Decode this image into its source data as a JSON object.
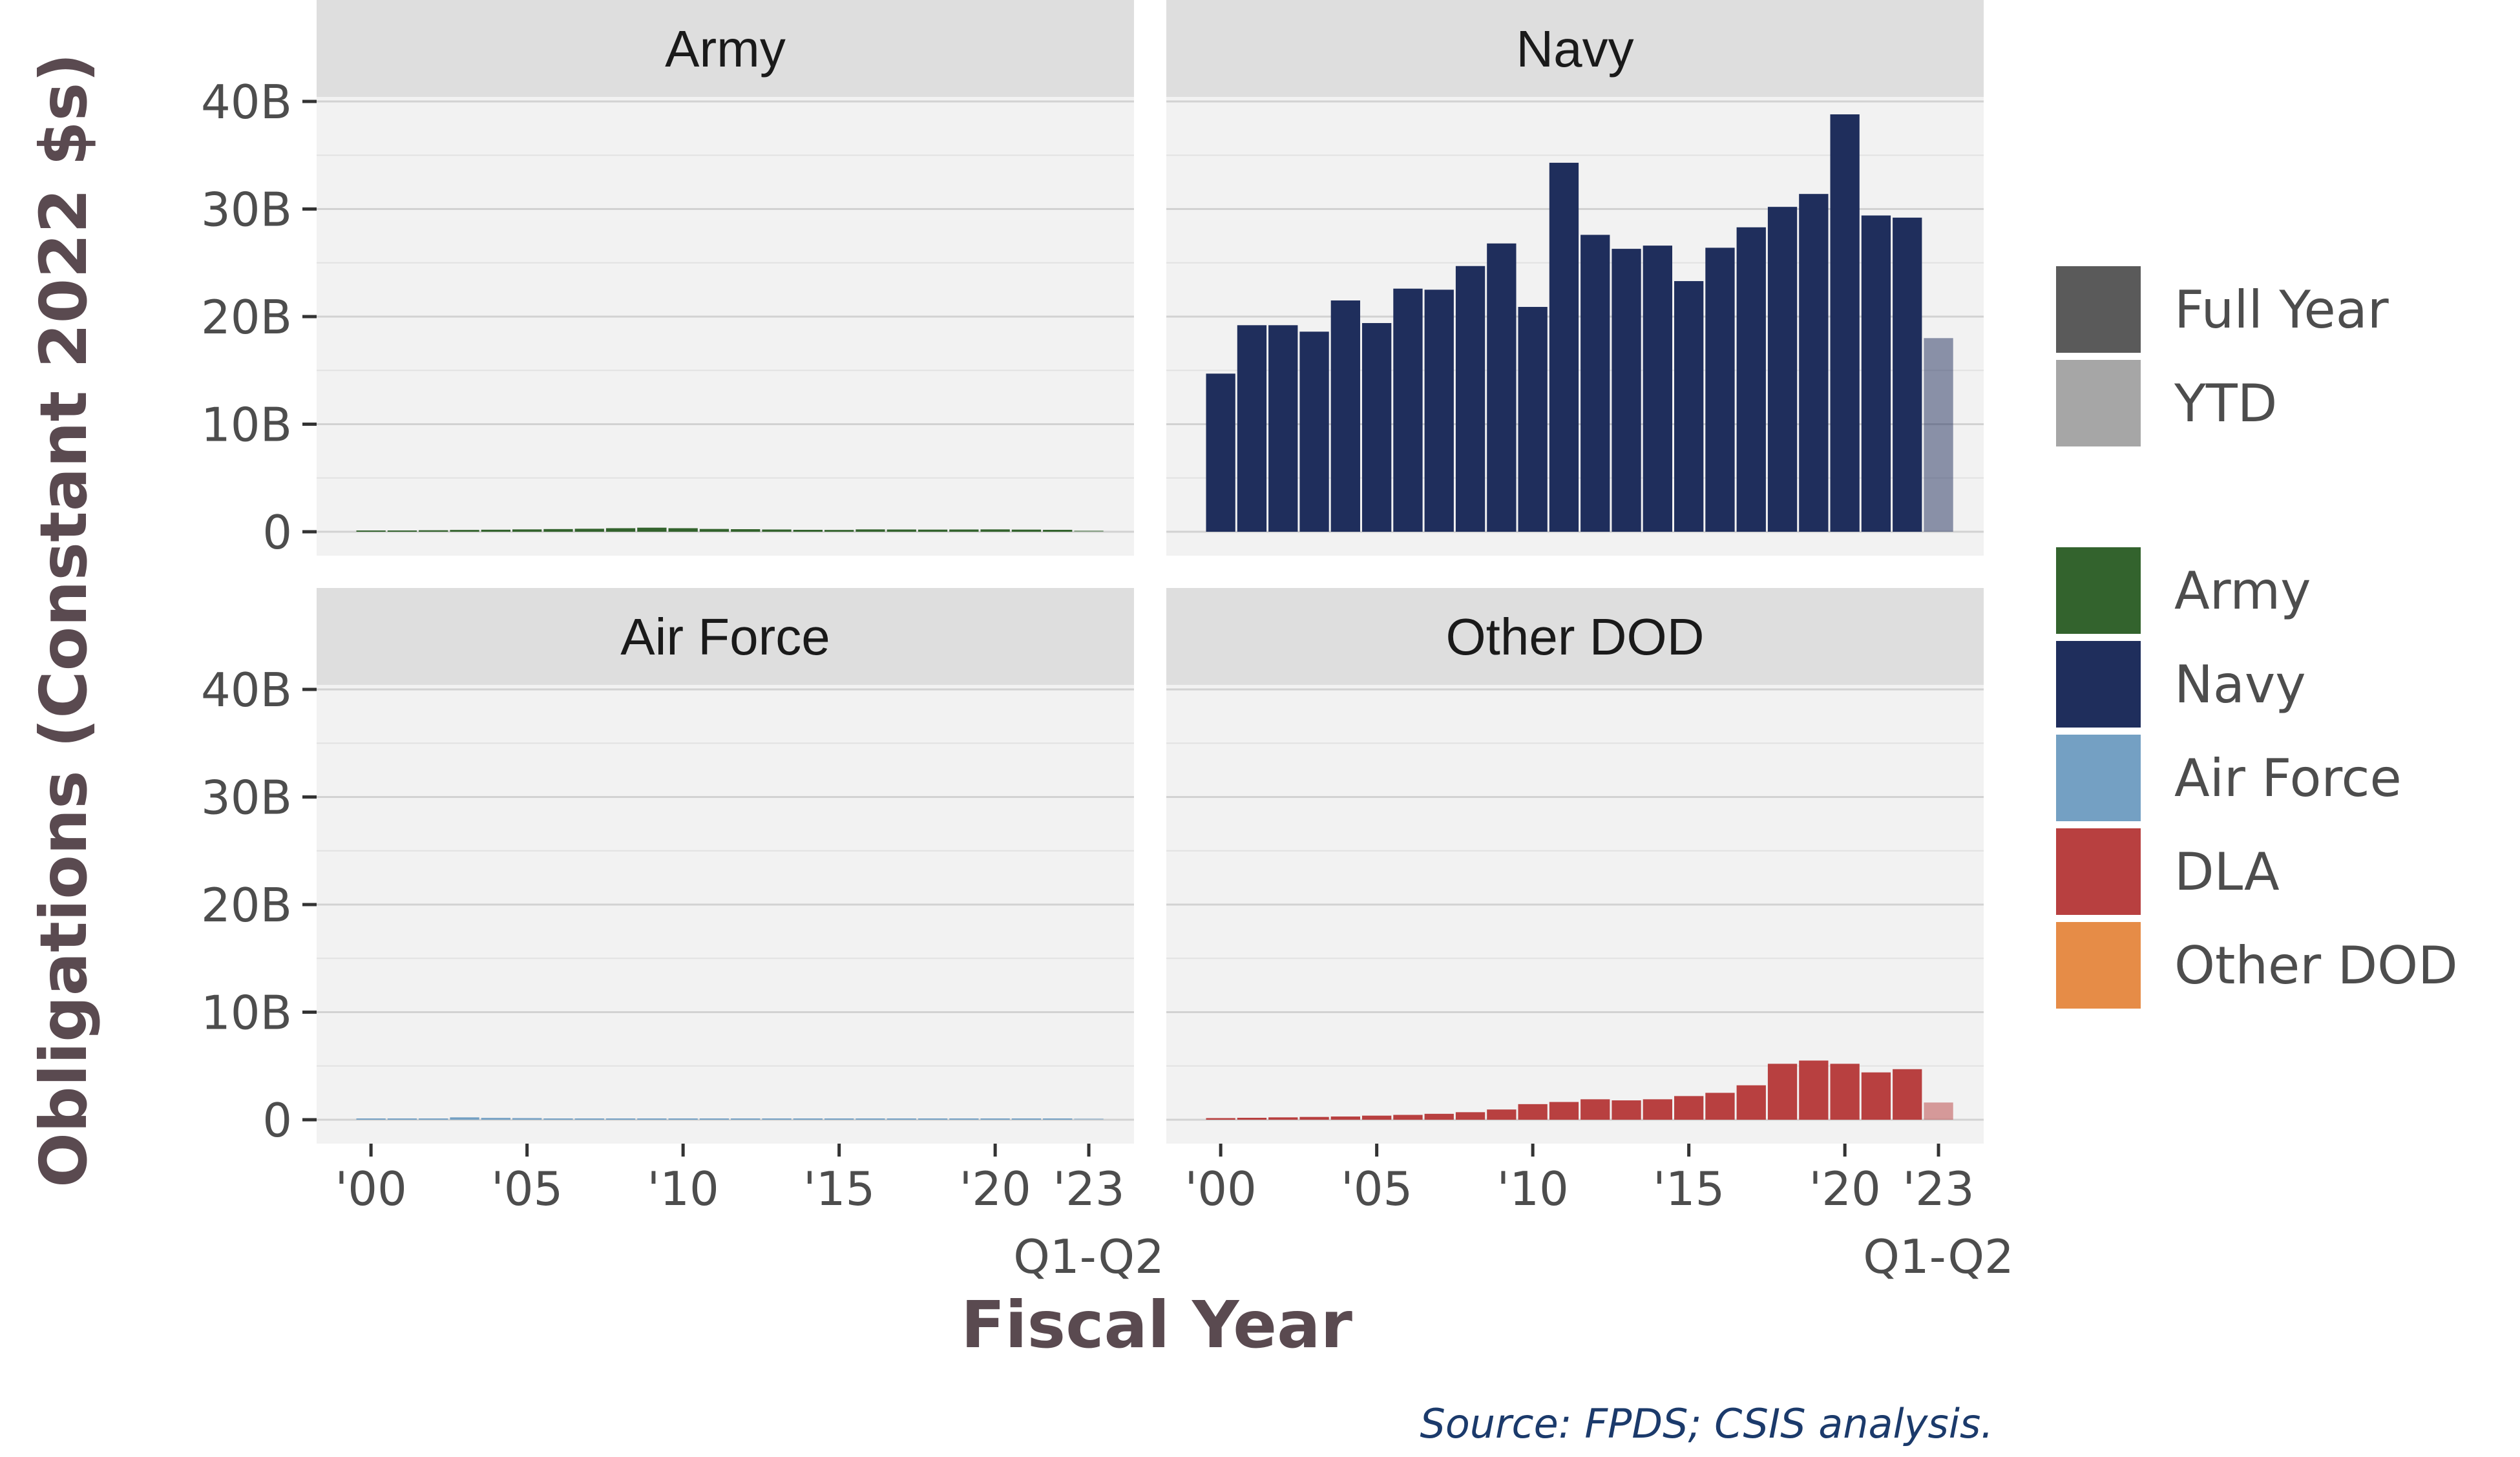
{
  "chart_data": {
    "type": "bar",
    "facets": [
      "Army",
      "Navy",
      "Air Force",
      "Other DOD"
    ],
    "ylabel": "Obligations (Constant 2022 $s)",
    "xlabel": "Fiscal Year",
    "ylim": [
      0,
      40000000000
    ],
    "yticks": [
      {
        "value": 0,
        "label": "0"
      },
      {
        "value": 10000000000,
        "label": "10B"
      },
      {
        "value": 20000000000,
        "label": "20B"
      },
      {
        "value": 30000000000,
        "label": "30B"
      },
      {
        "value": 40000000000,
        "label": "40B"
      }
    ],
    "xticks": [
      {
        "year": 2000,
        "label": "'00"
      },
      {
        "year": 2005,
        "label": "'05"
      },
      {
        "year": 2010,
        "label": "'10"
      },
      {
        "year": 2015,
        "label": "'15"
      },
      {
        "year": 2020,
        "label": "'20"
      },
      {
        "year": 2023,
        "label": "'23",
        "sublabel": "Q1-Q2"
      }
    ],
    "years": [
      2000,
      2001,
      2002,
      2003,
      2004,
      2005,
      2006,
      2007,
      2008,
      2009,
      2010,
      2011,
      2012,
      2013,
      2014,
      2015,
      2016,
      2017,
      2018,
      2019,
      2020,
      2021,
      2022,
      2023
    ],
    "period": [
      "Full Year",
      "Full Year",
      "Full Year",
      "Full Year",
      "Full Year",
      "Full Year",
      "Full Year",
      "Full Year",
      "Full Year",
      "Full Year",
      "Full Year",
      "Full Year",
      "Full Year",
      "Full Year",
      "Full Year",
      "Full Year",
      "Full Year",
      "Full Year",
      "Full Year",
      "Full Year",
      "Full Year",
      "Full Year",
      "Full Year",
      "YTD"
    ],
    "series": [
      {
        "name": "Army",
        "facet": "Army",
        "color": "#33632d",
        "values": [
          0.1,
          0.12,
          0.14,
          0.17,
          0.19,
          0.22,
          0.25,
          0.28,
          0.33,
          0.38,
          0.33,
          0.26,
          0.24,
          0.21,
          0.18,
          0.17,
          0.22,
          0.21,
          0.2,
          0.21,
          0.22,
          0.2,
          0.18,
          0.06
        ]
      },
      {
        "name": "Navy",
        "facet": "Navy",
        "color": "#1f2e5c",
        "values": [
          14.7,
          19.2,
          19.2,
          18.6,
          21.5,
          19.4,
          22.6,
          22.5,
          24.7,
          26.8,
          20.9,
          34.3,
          27.6,
          26.3,
          26.6,
          23.3,
          26.4,
          28.3,
          30.2,
          31.4,
          38.8,
          29.4,
          29.2,
          18.0
        ]
      },
      {
        "name": "Air Force",
        "facet": "Air Force",
        "color": "#74a0c3",
        "values": [
          0.02,
          0.04,
          0.06,
          0.22,
          0.17,
          0.15,
          0.08,
          0.04,
          0.03,
          0.03,
          0.02,
          0.02,
          0.02,
          0.02,
          0.02,
          0.02,
          0.02,
          0.02,
          0.02,
          0.02,
          0.02,
          0.02,
          0.02,
          0.01
        ]
      },
      {
        "name": "DLA",
        "facet": "Other DOD",
        "color": "#b84040",
        "values": [
          0.15,
          0.18,
          0.22,
          0.26,
          0.3,
          0.38,
          0.45,
          0.55,
          0.7,
          0.95,
          1.45,
          1.65,
          1.9,
          1.8,
          1.9,
          2.2,
          2.5,
          3.2,
          5.2,
          5.5,
          5.2,
          4.4,
          4.7,
          1.6
        ]
      },
      {
        "name": "Other DOD",
        "facet": "Other DOD",
        "color": "#e68c47",
        "values": [
          0,
          0,
          0,
          0,
          0,
          0,
          0,
          0,
          0,
          0,
          0,
          0,
          0,
          0,
          0,
          0,
          0,
          0,
          0,
          0,
          0,
          0,
          0,
          0
        ]
      }
    ],
    "value_unit": "B",
    "legend": {
      "position": "right",
      "period": [
        {
          "label": "Full Year",
          "color": "#5a5a5a"
        },
        {
          "label": "YTD",
          "color": "#a6a6a6"
        }
      ],
      "customer": [
        {
          "label": "Army",
          "color": "#33632d"
        },
        {
          "label": "Navy",
          "color": "#1f2e5c"
        },
        {
          "label": "Air Force",
          "color": "#74a0c3"
        },
        {
          "label": "DLA",
          "color": "#b84040"
        },
        {
          "label": "Other DOD",
          "color": "#e68c47"
        }
      ]
    },
    "grid": true,
    "source": "Source: FPDS; CSIS analysis."
  }
}
